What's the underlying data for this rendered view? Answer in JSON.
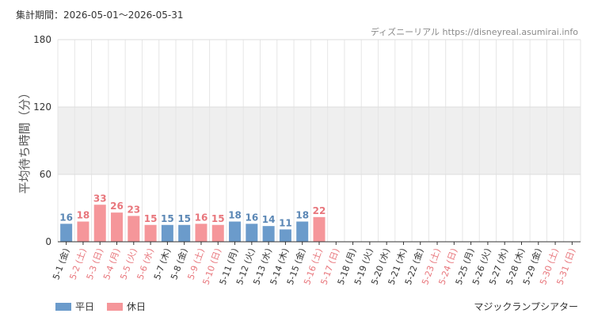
{
  "header": {
    "period": "集計期間：2026-05-01～2026-05-31",
    "credit": "ディズニーリアル https://disneyreal.asumirai.info"
  },
  "legend": {
    "weekday_label": "平日",
    "holiday_label": "休日"
  },
  "footer": {
    "attraction": "マジックランプシアター"
  },
  "colors": {
    "weekday_bar": "#6b9bcb",
    "holiday_bar": "#f5969a",
    "weekday_text": "#5b87b5",
    "holiday_text": "#e8767c",
    "band": "#efefef"
  },
  "chart_data": {
    "type": "bar",
    "ylabel": "平均待ち時間（分）",
    "ylim": [
      0,
      180
    ],
    "yticks": [
      0,
      60,
      120,
      180
    ],
    "band": [
      60,
      120
    ],
    "categories": [
      "5-1 (金)",
      "5-2 (土)",
      "5-3 (日)",
      "5-4 (月)",
      "5-5 (火)",
      "5-6 (水)",
      "5-7 (木)",
      "5-8 (金)",
      "5-9 (土)",
      "5-10 (日)",
      "5-11 (月)",
      "5-12 (火)",
      "5-13 (水)",
      "5-14 (木)",
      "5-15 (金)",
      "5-16 (土)",
      "5-17 (日)",
      "5-18 (月)",
      "5-19 (火)",
      "5-20 (水)",
      "5-21 (木)",
      "5-22 (金)",
      "5-23 (土)",
      "5-24 (日)",
      "5-25 (月)",
      "5-26 (火)",
      "5-27 (水)",
      "5-28 (木)",
      "5-29 (金)",
      "5-30 (土)",
      "5-31 (日)"
    ],
    "day_type": [
      "平日",
      "休日",
      "休日",
      "休日",
      "休日",
      "休日",
      "平日",
      "平日",
      "休日",
      "休日",
      "平日",
      "平日",
      "平日",
      "平日",
      "平日",
      "休日",
      "休日",
      "平日",
      "平日",
      "平日",
      "平日",
      "平日",
      "休日",
      "休日",
      "平日",
      "平日",
      "平日",
      "平日",
      "平日",
      "休日",
      "休日"
    ],
    "values": [
      16,
      18,
      33,
      26,
      23,
      15,
      15,
      15,
      16,
      15,
      18,
      16,
      14,
      11,
      18,
      22,
      null,
      null,
      null,
      null,
      null,
      null,
      null,
      null,
      null,
      null,
      null,
      null,
      null,
      null,
      null
    ]
  }
}
